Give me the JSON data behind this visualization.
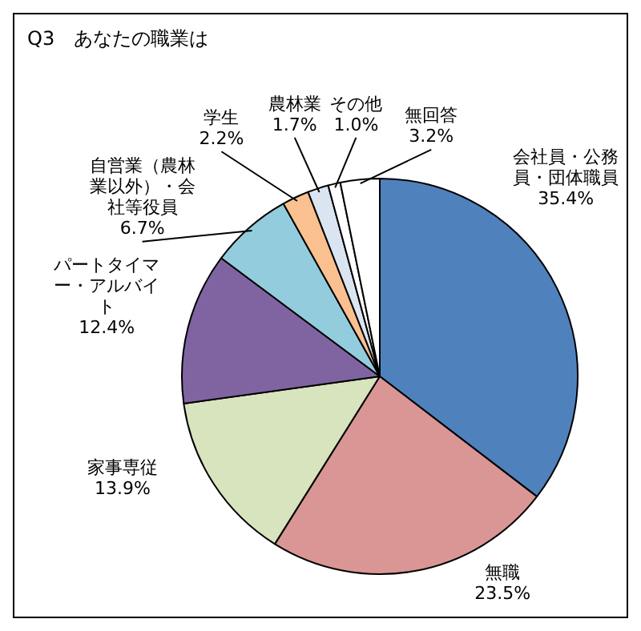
{
  "chart_data": {
    "type": "pie",
    "title": "Q3　あなたの職業は",
    "categories": [
      "会社員・公務員・団体職員",
      "無職",
      "家事専従",
      "パートタイマー・アルバイト",
      "自営業（農林業以外）・会社等役員",
      "学生",
      "農林業",
      "その他",
      "無回答"
    ],
    "values": [
      35.4,
      23.5,
      13.9,
      12.4,
      6.7,
      2.2,
      1.7,
      1.0,
      3.2
    ],
    "value_labels": [
      "35.4%",
      "23.5%",
      "13.9%",
      "12.4%",
      "6.7%",
      "2.2%",
      "1.7%",
      "1.0%",
      "3.2%"
    ],
    "colors": [
      "#4f81bd",
      "#d99694",
      "#d7e4bd",
      "#8064a2",
      "#93cddd",
      "#fac090",
      "#dbe5f1",
      "#ffffff",
      "#ffffff"
    ],
    "legend": false
  }
}
